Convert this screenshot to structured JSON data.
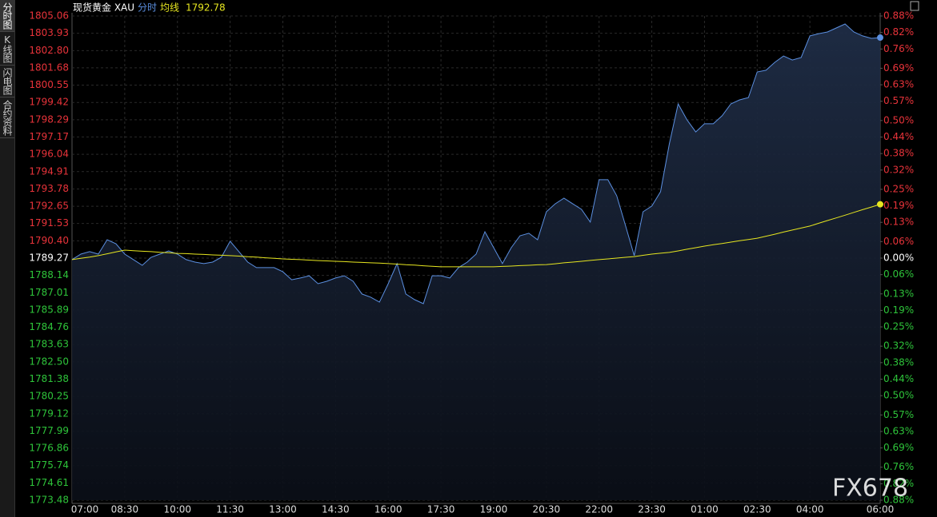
{
  "sidebar": [
    "分时图",
    "K线图",
    "闪电图",
    "合约资料"
  ],
  "chart_data": {
    "type": "line",
    "title": "现货黄金 XAU",
    "legend_value": 1792.78,
    "watermark": "FX678",
    "grid": true,
    "colors": {
      "up": "#e8333a",
      "down": "#2ec43a",
      "flat": "#ffffff"
    },
    "categories": [
      "07:00",
      null,
      null,
      null,
      null,
      null,
      "08:30",
      null,
      null,
      null,
      null,
      null,
      "10:00",
      null,
      null,
      null,
      null,
      null,
      "11:30",
      null,
      null,
      null,
      null,
      null,
      "13:00",
      null,
      null,
      null,
      null,
      null,
      "14:30",
      null,
      null,
      null,
      null,
      null,
      "16:00",
      null,
      null,
      null,
      null,
      null,
      "17:30",
      null,
      null,
      null,
      null,
      null,
      "19:00",
      null,
      null,
      null,
      null,
      null,
      "20:30",
      null,
      null,
      null,
      null,
      null,
      "22:00",
      null,
      null,
      null,
      null,
      null,
      "23:30",
      null,
      null,
      null,
      null,
      null,
      "01:00",
      null,
      null,
      null,
      null,
      null,
      "02:30",
      null,
      null,
      null,
      null,
      null,
      "04:00",
      null,
      null,
      null,
      null,
      null,
      null,
      null,
      "06:00"
    ],
    "series": [
      {
        "name": "分时",
        "color": "#5b8fe0",
        "values": [
          1789.17,
          1789.53,
          1789.69,
          1789.53,
          1790.47,
          1790.21,
          1789.53,
          1789.17,
          1788.8,
          1789.32,
          1789.53,
          1789.74,
          1789.53,
          1789.17,
          1789.01,
          1788.91,
          1789.01,
          1789.32,
          1790.37,
          1789.69,
          1789.01,
          1788.65,
          1788.65,
          1788.65,
          1788.38,
          1787.86,
          1787.97,
          1788.12,
          1787.6,
          1787.76,
          1787.97,
          1788.12,
          1787.76,
          1786.93,
          1786.72,
          1786.4,
          1787.6,
          1788.91,
          1786.93,
          1786.56,
          1786.3,
          1788.12,
          1788.12,
          1787.97,
          1788.65,
          1789.01,
          1789.53,
          1790.99,
          1789.95,
          1788.91,
          1789.95,
          1790.73,
          1790.89,
          1790.47,
          1792.29,
          1792.81,
          1793.18,
          1792.81,
          1792.45,
          1791.62,
          1794.38,
          1794.38,
          1793.34,
          1791.41,
          1789.43,
          1792.29,
          1792.66,
          1793.6,
          1796.72,
          1799.33,
          1798.29,
          1797.5,
          1798.03,
          1798.03,
          1798.55,
          1799.33,
          1799.59,
          1799.74,
          1801.41,
          1801.52,
          1802.04,
          1802.45,
          1802.19,
          1802.35,
          1803.76,
          1803.91,
          1804.02,
          1804.28,
          1804.54,
          1804.02,
          1803.76,
          1803.6,
          1803.65
        ]
      },
      {
        "name": "均线",
        "color": "#e6e620",
        "values": [
          1789.17,
          1789.26,
          1789.34,
          1789.43,
          1789.55,
          1789.67,
          1789.79,
          1789.75,
          1789.72,
          1789.69,
          1789.65,
          1789.62,
          1789.58,
          1789.56,
          1789.53,
          1789.51,
          1789.48,
          1789.46,
          1789.43,
          1789.4,
          1789.36,
          1789.33,
          1789.29,
          1789.26,
          1789.22,
          1789.19,
          1789.17,
          1789.14,
          1789.11,
          1789.09,
          1789.06,
          1789.04,
          1789.01,
          1788.99,
          1788.96,
          1788.94,
          1788.91,
          1788.88,
          1788.84,
          1788.81,
          1788.77,
          1788.74,
          1788.7,
          1788.7,
          1788.7,
          1788.7,
          1788.7,
          1788.7,
          1788.7,
          1788.73,
          1788.75,
          1788.78,
          1788.8,
          1788.83,
          1788.85,
          1788.9,
          1788.96,
          1789.01,
          1789.06,
          1789.12,
          1789.17,
          1789.22,
          1789.27,
          1789.32,
          1789.37,
          1789.45,
          1789.53,
          1789.59,
          1789.64,
          1789.74,
          1789.85,
          1789.95,
          1790.05,
          1790.14,
          1790.22,
          1790.31,
          1790.4,
          1790.48,
          1790.57,
          1790.7,
          1790.83,
          1790.97,
          1791.1,
          1791.23,
          1791.36,
          1791.54,
          1791.72,
          1791.89,
          1792.07,
          1792.25,
          1792.43,
          1792.6,
          1792.78
        ]
      }
    ],
    "ylim": [
      1773.48,
      1805.06
    ],
    "yticks": [
      1805.06,
      1803.93,
      {
        "value": 1802.8,
        "label": "1802.80"
      },
      1801.68,
      1800.55,
      1799.42,
      1798.29,
      1797.17,
      1796.04,
      1794.91,
      1793.78,
      1792.65,
      1791.53,
      {
        "value": 1790.4,
        "label": "1790.40"
      },
      1789.27,
      1788.14,
      1787.01,
      1785.89,
      1784.76,
      1783.63,
      {
        "value": 1782.5,
        "label": "1782.50"
      },
      1781.38,
      1780.25,
      1779.12,
      1777.99,
      1776.86,
      1775.74,
      1774.61,
      1773.48
    ],
    "y2lim": [
      -0.88,
      0.88
    ],
    "y2ticks": [
      {
        "value": 0.88,
        "label": "0.88%"
      },
      {
        "value": 0.82,
        "label": "0.82%"
      },
      {
        "value": 0.76,
        "label": "0.76%"
      },
      {
        "value": 0.69,
        "label": "0.69%"
      },
      {
        "value": 0.63,
        "label": "0.63%"
      },
      {
        "value": 0.57,
        "label": "0.57%"
      },
      {
        "value": 0.5,
        "label": "0.50%"
      },
      {
        "value": 0.44,
        "label": "0.44%"
      },
      {
        "value": 0.38,
        "label": "0.38%"
      },
      {
        "value": 0.32,
        "label": "0.32%"
      },
      {
        "value": 0.25,
        "label": "0.25%"
      },
      {
        "value": 0.19,
        "label": "0.19%"
      },
      {
        "value": 0.13,
        "label": "0.13%"
      },
      {
        "value": 0.06,
        "label": "0.06%"
      },
      {
        "value": 0,
        "label": "0.00%"
      },
      {
        "value": -0.06,
        "label": "0.06%"
      },
      {
        "value": -0.13,
        "label": "0.13%"
      },
      {
        "value": -0.19,
        "label": "0.19%"
      },
      {
        "value": -0.25,
        "label": "0.25%"
      },
      {
        "value": -0.32,
        "label": "0.32%"
      },
      {
        "value": -0.38,
        "label": "0.38%"
      },
      {
        "value": -0.44,
        "label": "0.44%"
      },
      {
        "value": -0.5,
        "label": "0.50%"
      },
      {
        "value": -0.57,
        "label": "0.57%"
      },
      {
        "value": -0.63,
        "label": "0.63%"
      },
      {
        "value": -0.69,
        "label": "0.69%"
      },
      {
        "value": -0.76,
        "label": "0.76%"
      },
      {
        "value": -0.82,
        "label": "0.82%"
      },
      {
        "value": -0.88,
        "label": "0.88%"
      }
    ]
  }
}
